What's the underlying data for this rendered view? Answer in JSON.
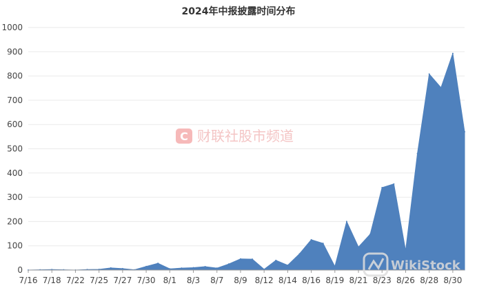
{
  "chart_data": {
    "type": "area",
    "title": "2024年中报披露时间分布",
    "xlabel": "",
    "ylabel": "",
    "ylim": [
      0,
      1000
    ],
    "yticks": [
      0,
      100,
      200,
      300,
      400,
      500,
      600,
      700,
      800,
      900,
      1000
    ],
    "grid": true,
    "color": "#4f81bd",
    "x_tick_labels": [
      "7/16",
      "7/18",
      "7/22",
      "7/25",
      "7/27",
      "7/30",
      "8/1",
      "8/3",
      "8/7",
      "8/9",
      "8/12",
      "8/14",
      "8/16",
      "8/19",
      "8/21",
      "8/23",
      "8/26",
      "8/28",
      "8/30"
    ],
    "points_per_tick": 2,
    "values": [
      0,
      1,
      2,
      1,
      0,
      2,
      3,
      9,
      6,
      1,
      15,
      28,
      5,
      8,
      10,
      14,
      8,
      25,
      46,
      45,
      3,
      40,
      20,
      67,
      125,
      110,
      15,
      200,
      95,
      148,
      340,
      355,
      80,
      480,
      808,
      752,
      893,
      570
    ]
  },
  "watermark": {
    "icon_letter": "C",
    "text": "财联社股市频道",
    "color": "#e85c5c"
  },
  "watermark2": {
    "text": "WikiStock"
  }
}
